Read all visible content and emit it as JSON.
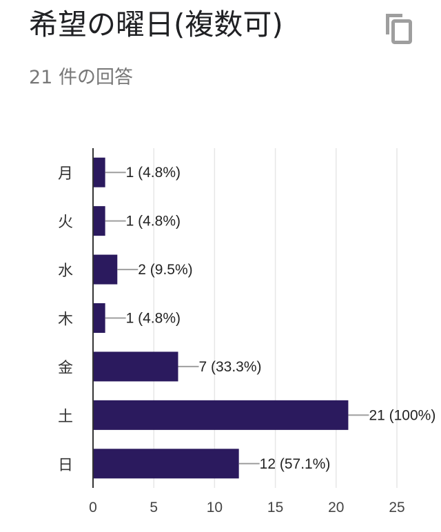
{
  "header": {
    "title": "希望の曜日(複数可)",
    "response_count": "21 件の回答",
    "copy_icon": "copy-icon"
  },
  "colors": {
    "bar": "#2b1a5e",
    "grid": "#e6e6e6",
    "axis": "#333333",
    "leader": "#9e9e9e",
    "title": "#202124",
    "subtitle": "#777777"
  },
  "chart_data": {
    "type": "bar",
    "orientation": "horizontal",
    "categories": [
      "月",
      "火",
      "水",
      "木",
      "金",
      "土",
      "日"
    ],
    "values": [
      1,
      1,
      2,
      1,
      7,
      21,
      12
    ],
    "data_labels": [
      "1 (4.8%)",
      "1 (4.8%)",
      "2 (9.5%)",
      "1 (4.8%)",
      "7 (33.3%)",
      "21 (100%)",
      "12 (57.1%)"
    ],
    "xlim": [
      0,
      25
    ],
    "xticks": [
      0,
      5,
      10,
      15,
      20,
      25
    ],
    "grid": true,
    "legend": "none"
  }
}
